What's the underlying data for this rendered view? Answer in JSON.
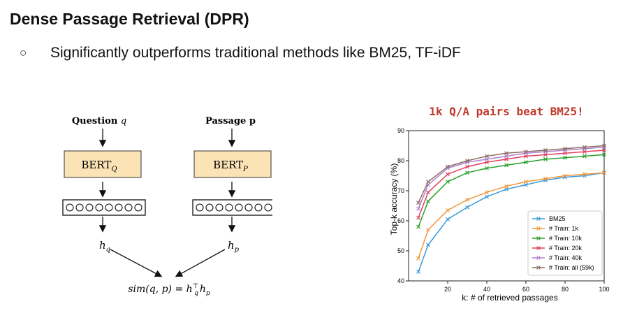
{
  "slide": {
    "title": "Dense Passage Retrieval (DPR)",
    "bullet_glyph": "○",
    "bullet_text": "Significantly outperforms traditional methods like BM25, TF-iDF"
  },
  "diagram": {
    "question_label": "Question",
    "question_var": "q",
    "passage_label": "Passage p",
    "bert_q_main": "BERT",
    "bert_q_sub": "Q",
    "bert_p_main": "BERT",
    "bert_p_sub": "P",
    "vector_cells": 8,
    "h_main": "h",
    "hq_sub": "q",
    "hp_sub": "p",
    "sim_lhs": "sim(q, p) = h",
    "sim_sup": "⊤",
    "sim_sub": "q",
    "sim_rhs": "h",
    "sim_rhs_sub": "p",
    "colors": {
      "bert_fill": "#fbe3b5",
      "bert_stroke": "#333333"
    }
  },
  "chart_data": {
    "type": "line",
    "annotation": "1k Q/A pairs beat BM25!",
    "annotation_color": "#c0392b",
    "xlabel": "k: # of retrieved passages",
    "ylabel": "Top-k accuracy (%)",
    "xlim": [
      0,
      100
    ],
    "ylim": [
      40,
      90
    ],
    "xticks": [
      20,
      40,
      60,
      80,
      100
    ],
    "yticks": [
      40,
      50,
      60,
      70,
      80,
      90
    ],
    "grid": false,
    "legend_position": "bottom-right",
    "x": [
      5,
      10,
      20,
      30,
      40,
      50,
      60,
      70,
      80,
      90,
      100
    ],
    "series": [
      {
        "name": "BM25",
        "color": "#3a9ad9",
        "values": [
          43,
          52,
          60.5,
          64.5,
          68,
          70.5,
          72,
          73.5,
          74.5,
          75,
          76
        ]
      },
      {
        "name": "# Train: 1k",
        "color": "#f0973c",
        "values": [
          47.5,
          57,
          63.5,
          67,
          69.5,
          71.5,
          73,
          74,
          75,
          75.5,
          76
        ]
      },
      {
        "name": "# Train: 10k",
        "color": "#2ca02c",
        "values": [
          58,
          66.5,
          73,
          76,
          77.5,
          78.5,
          79.5,
          80.5,
          81,
          81.5,
          82
        ]
      },
      {
        "name": "# Train: 20k",
        "color": "#e0405e",
        "values": [
          61,
          69.5,
          75.5,
          78,
          79.5,
          80.5,
          81.5,
          82,
          82.5,
          83,
          83.5
        ]
      },
      {
        "name": "# Train: 40k",
        "color": "#b07fd1",
        "values": [
          64,
          72,
          77.5,
          79.5,
          80.5,
          81.5,
          82.5,
          83,
          83.5,
          84,
          84.5
        ]
      },
      {
        "name": "# Train: all (59k)",
        "color": "#8c6d62",
        "values": [
          66,
          73,
          78,
          80,
          81.5,
          82.5,
          83,
          83.5,
          84,
          84.5,
          85
        ]
      }
    ]
  }
}
